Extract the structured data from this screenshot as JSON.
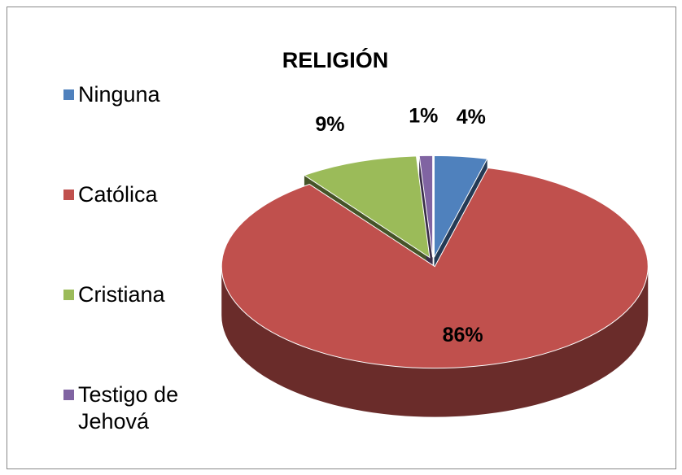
{
  "chart_data": {
    "type": "pie",
    "title": "RELIGIÓN",
    "categories": [
      "Ninguna",
      "Católica",
      "Cristiana",
      "Testigo de Jehová"
    ],
    "values": [
      4,
      86,
      9,
      1
    ],
    "value_labels": [
      "4%",
      "86%",
      "9%",
      "1%"
    ],
    "colors": [
      "#4f81bd",
      "#c0504d",
      "#9bbb59",
      "#8064a2"
    ],
    "legend": "left"
  }
}
